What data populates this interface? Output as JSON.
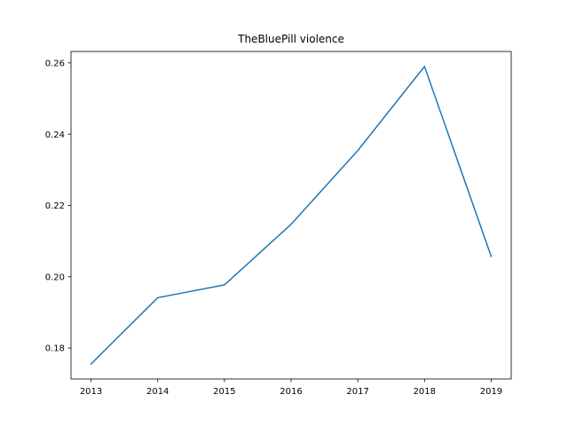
{
  "chart_data": {
    "type": "line",
    "title": "TheBluePill violence",
    "xlabel": "",
    "ylabel": "",
    "x": [
      2013,
      2014,
      2015,
      2016,
      2017,
      2018,
      2019
    ],
    "series": [
      {
        "values": [
          0.1755,
          0.1941,
          0.1977,
          0.2147,
          0.2354,
          0.259,
          0.2057
        ]
      }
    ],
    "xlim": [
      2012.7,
      2019.3
    ],
    "ylim": [
      0.1713,
      0.2632
    ],
    "x_ticks": [
      2013,
      2014,
      2015,
      2016,
      2017,
      2018,
      2019
    ],
    "y_ticks": [
      0.18,
      0.2,
      0.22,
      0.24,
      0.26
    ],
    "x_tick_labels": [
      "2013",
      "2014",
      "2015",
      "2016",
      "2017",
      "2018",
      "2019"
    ],
    "y_tick_labels": [
      "0.18",
      "0.20",
      "0.22",
      "0.24",
      "0.26"
    ],
    "line_color": "#1f77b4",
    "grid": false,
    "legend": "none"
  }
}
